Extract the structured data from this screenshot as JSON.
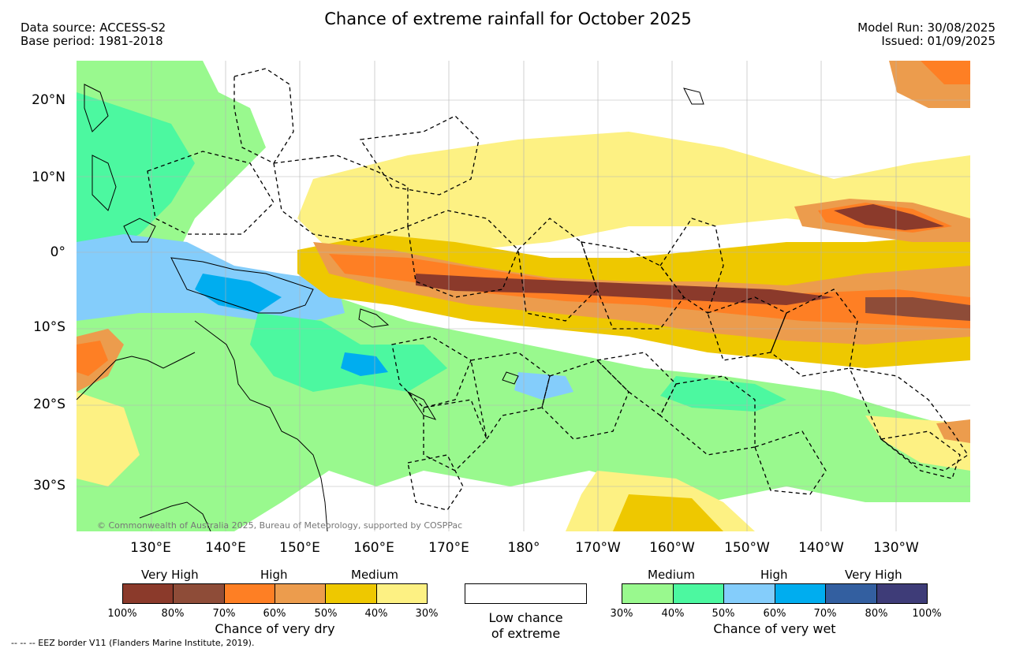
{
  "title": "Chance of extreme rainfall for October 2025",
  "header_left": {
    "data_source": "Data source: ACCESS-S2",
    "base_period": "Base period: 1981-2018"
  },
  "header_right": {
    "model_run": "Model Run: 30/08/2025",
    "issued": "Issued: 01/09/2025"
  },
  "map": {
    "lat_labels": [
      "20°N",
      "10°N",
      "0°",
      "10°S",
      "20°S",
      "30°S"
    ],
    "lon_labels": [
      "130°E",
      "140°E",
      "150°E",
      "160°E",
      "170°E",
      "180°",
      "170°W",
      "160°W",
      "150°W",
      "140°W",
      "130°W"
    ],
    "copyright": "© Commonwealth of Australia 2025, Bureau of Meteorology, supported by COSPPac",
    "colors": {
      "ocean": "#ffffff",
      "dry_very_high_100": "#8b3a2b",
      "dry_very_high_80": "#8e4c38",
      "dry_high_70": "#fe7f24",
      "dry_high_60": "#ec9c4d",
      "dry_medium_50": "#eec800",
      "dry_medium_40": "#fdf183",
      "wet_medium_30": "#99f98e",
      "wet_medium_40": "#4cf8a0",
      "wet_high_50": "#84cdfb",
      "wet_high_60": "#00adef",
      "wet_very_high_70": "#335fa0",
      "wet_very_high_80": "#3e3c78"
    }
  },
  "legend_dry": {
    "categories": [
      "Very High",
      "High",
      "Medium"
    ],
    "ticks": [
      "100%",
      "80%",
      "70%",
      "60%",
      "50%",
      "40%",
      "30%"
    ],
    "title": "Chance of very dry",
    "colors": [
      "#8b3a2b",
      "#8e4c38",
      "#fe7f24",
      "#ec9c4d",
      "#eec800",
      "#fdf183"
    ]
  },
  "legend_low": {
    "line1": "Low chance",
    "line2": "of extreme"
  },
  "legend_wet": {
    "categories": [
      "Medium",
      "High",
      "Very High"
    ],
    "ticks": [
      "30%",
      "40%",
      "50%",
      "60%",
      "70%",
      "80%",
      "100%"
    ],
    "title": "Chance of very wet",
    "colors": [
      "#99f98e",
      "#4cf8a0",
      "#84cdfb",
      "#00adef",
      "#335fa0",
      "#3e3c78"
    ]
  },
  "footnote": "-- -- -- EEZ border V11 (Flanders Marine Institute, 2019)."
}
